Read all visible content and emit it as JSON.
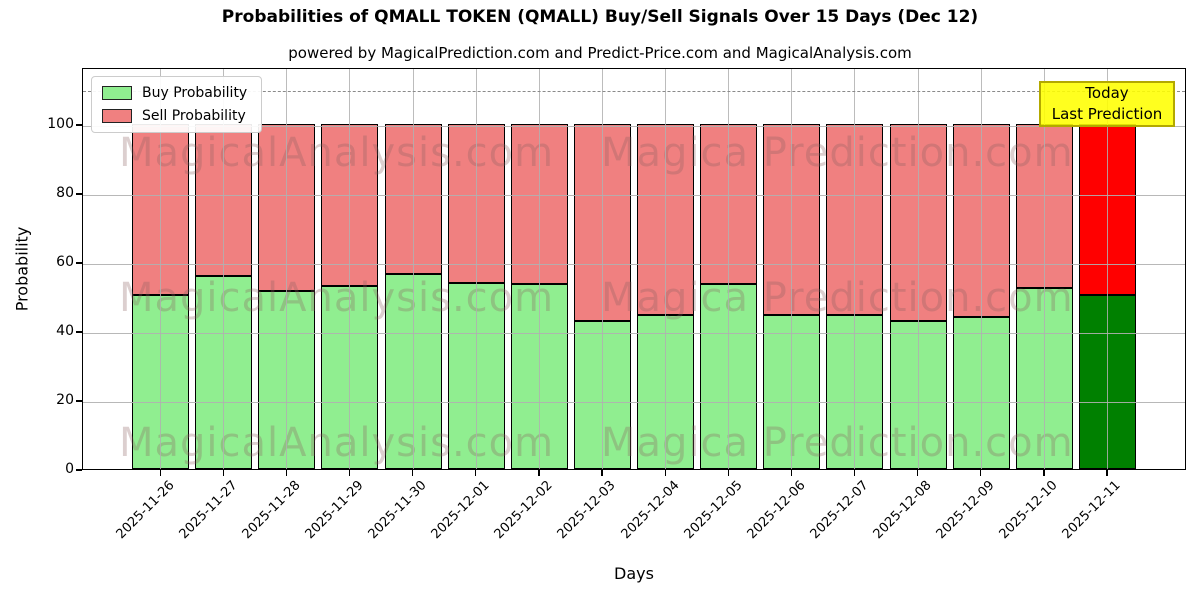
{
  "title": "Probabilities of QMALL TOKEN (QMALL) Buy/Sell Signals Over 15 Days (Dec 12)",
  "subtitle": "powered by MagicalPrediction.com and Predict-Price.com and MagicalAnalysis.com",
  "annotation": {
    "line1": "Today",
    "line2": "Last Prediction",
    "bg_color": "#ffff00"
  },
  "watermarks": {
    "left": "MagicalAnalysis.com",
    "right": "Magica Prediction.com"
  },
  "colors": {
    "buy": "#90ee90",
    "sell": "#f08080",
    "buy_today": "#008000",
    "sell_today": "#ff0000",
    "grid": "#b0b0b0",
    "dashed_line": "#8a8a8a",
    "bar_edge": "#000000"
  },
  "chart_data": {
    "type": "bar",
    "stacked": true,
    "title": "Probabilities of QMALL TOKEN (QMALL) Buy/Sell Signals Over 15 Days (Dec 12)",
    "xlabel": "Days",
    "ylabel": "Probability",
    "categories": [
      "2025-11-26",
      "2025-11-27",
      "2025-11-28",
      "2025-11-29",
      "2025-11-30",
      "2025-12-01",
      "2025-12-02",
      "2025-12-03",
      "2025-12-04",
      "2025-12-05",
      "2025-12-06",
      "2025-12-07",
      "2025-12-08",
      "2025-12-09",
      "2025-12-10",
      "2025-12-11"
    ],
    "series": [
      {
        "name": "Buy Probability",
        "color": "#90ee90",
        "today_color": "#008000",
        "values": [
          50.5,
          56,
          51.5,
          53,
          56.5,
          54,
          53.5,
          43,
          44.5,
          53.5,
          44.5,
          44.5,
          43,
          44,
          52.5,
          50.5
        ]
      },
      {
        "name": "Sell Probability",
        "color": "#f08080",
        "today_color": "#ff0000",
        "values": [
          49.5,
          44,
          48.5,
          47,
          43.5,
          46,
          46.5,
          57,
          55.5,
          46.5,
          55.5,
          55.5,
          57,
          56,
          47.5,
          49.5
        ]
      }
    ],
    "yticks": [
      0,
      20,
      40,
      60,
      80,
      100
    ],
    "ylim": [
      0,
      116.5
    ],
    "dashed_hline": 110,
    "grid": true,
    "legend_position": "upper left",
    "today_index": 15
  }
}
